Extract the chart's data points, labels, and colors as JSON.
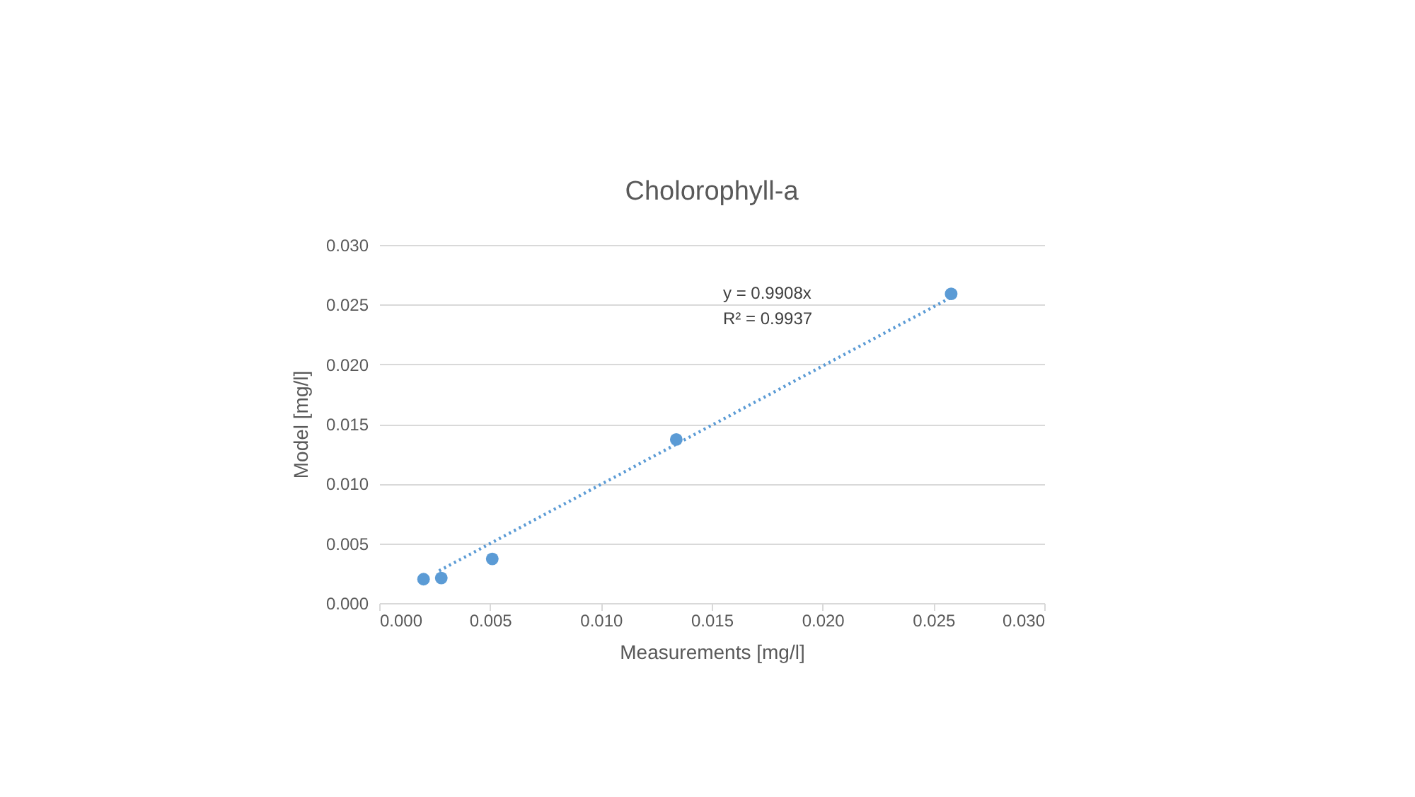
{
  "chart_data": {
    "type": "scatter",
    "title": "Cholorophyll-a",
    "xlabel": "Measurements [mg/l]",
    "ylabel": "Model [mg/l]",
    "series": [
      {
        "color": "#5b9bd5",
        "x": [
          0.002,
          0.0028,
          0.0051,
          0.0134,
          0.0258
        ],
        "values": [
          0.002,
          0.0021,
          0.0037,
          0.0137,
          0.0259
        ]
      },
      {
        "type": "line",
        "color": "#5b9bd5",
        "line_style": "dotted",
        "marker": "none",
        "x": [
          0.0027,
          0.026
        ],
        "values": [
          0.0027,
          0.0258
        ]
      }
    ],
    "annotations": [
      "y = 0.9908x",
      "R² = 0.9937"
    ],
    "xlim": [
      0,
      0.03
    ],
    "xticks": [
      {
        "value": 0,
        "label": "0.000"
      },
      {
        "value": 0.005,
        "label": "0.005"
      },
      {
        "value": 0.01,
        "label": "0.010"
      },
      {
        "value": 0.015,
        "label": "0.015"
      },
      {
        "value": 0.02,
        "label": "0.020"
      },
      {
        "value": 0.025,
        "label": "0.025"
      },
      {
        "value": 0.03,
        "label": "0.030"
      }
    ],
    "ylim": [
      0,
      0.03
    ],
    "yticks": [
      {
        "value": 0,
        "label": "0.000"
      },
      {
        "value": 0.005,
        "label": "0.005"
      },
      {
        "value": 0.01,
        "label": "0.010"
      },
      {
        "value": 0.015,
        "label": "0.015"
      },
      {
        "value": 0.02,
        "label": "0.020"
      },
      {
        "value": 0.025,
        "label": "0.025"
      },
      {
        "value": 0.03,
        "label": "0.030"
      }
    ],
    "grid": "y",
    "marker": "circle"
  }
}
